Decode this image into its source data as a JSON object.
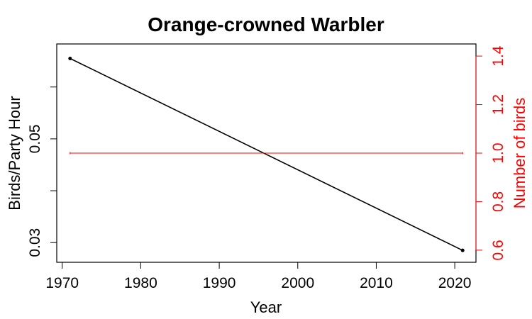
{
  "chart_data": {
    "type": "line",
    "title": "Orange-crowned Warbler",
    "xlabel": "Year",
    "ylabel": "Birds/Party Hour",
    "ylabel_right": "Number of birds",
    "xlim": [
      1969.3,
      2022.7
    ],
    "ylim": [
      0.0262,
      0.0683
    ],
    "ylim_right": [
      0.55,
      1.45
    ],
    "x_ticks": [
      1970,
      1980,
      1990,
      2000,
      2010,
      2020
    ],
    "y_ticks": [
      0.03,
      0.04,
      0.05,
      0.06
    ],
    "y_tick_labels": [
      "0.03",
      "",
      "0.05",
      ""
    ],
    "y_right_ticks": [
      0.6,
      0.8,
      1.0,
      1.2,
      1.4
    ],
    "y_right_tick_labels": [
      "0.6",
      "0.8",
      "1.0",
      "1.2",
      "1.4"
    ],
    "grid": false,
    "series": [
      {
        "axis": "left",
        "color": "#000000",
        "x": [
          1971,
          2021
        ],
        "values": [
          0.0655,
          0.0285
        ]
      },
      {
        "axis": "right",
        "color": "#ff0000",
        "x": [
          1971,
          2021
        ],
        "values": [
          1.0,
          1.0
        ]
      }
    ]
  }
}
